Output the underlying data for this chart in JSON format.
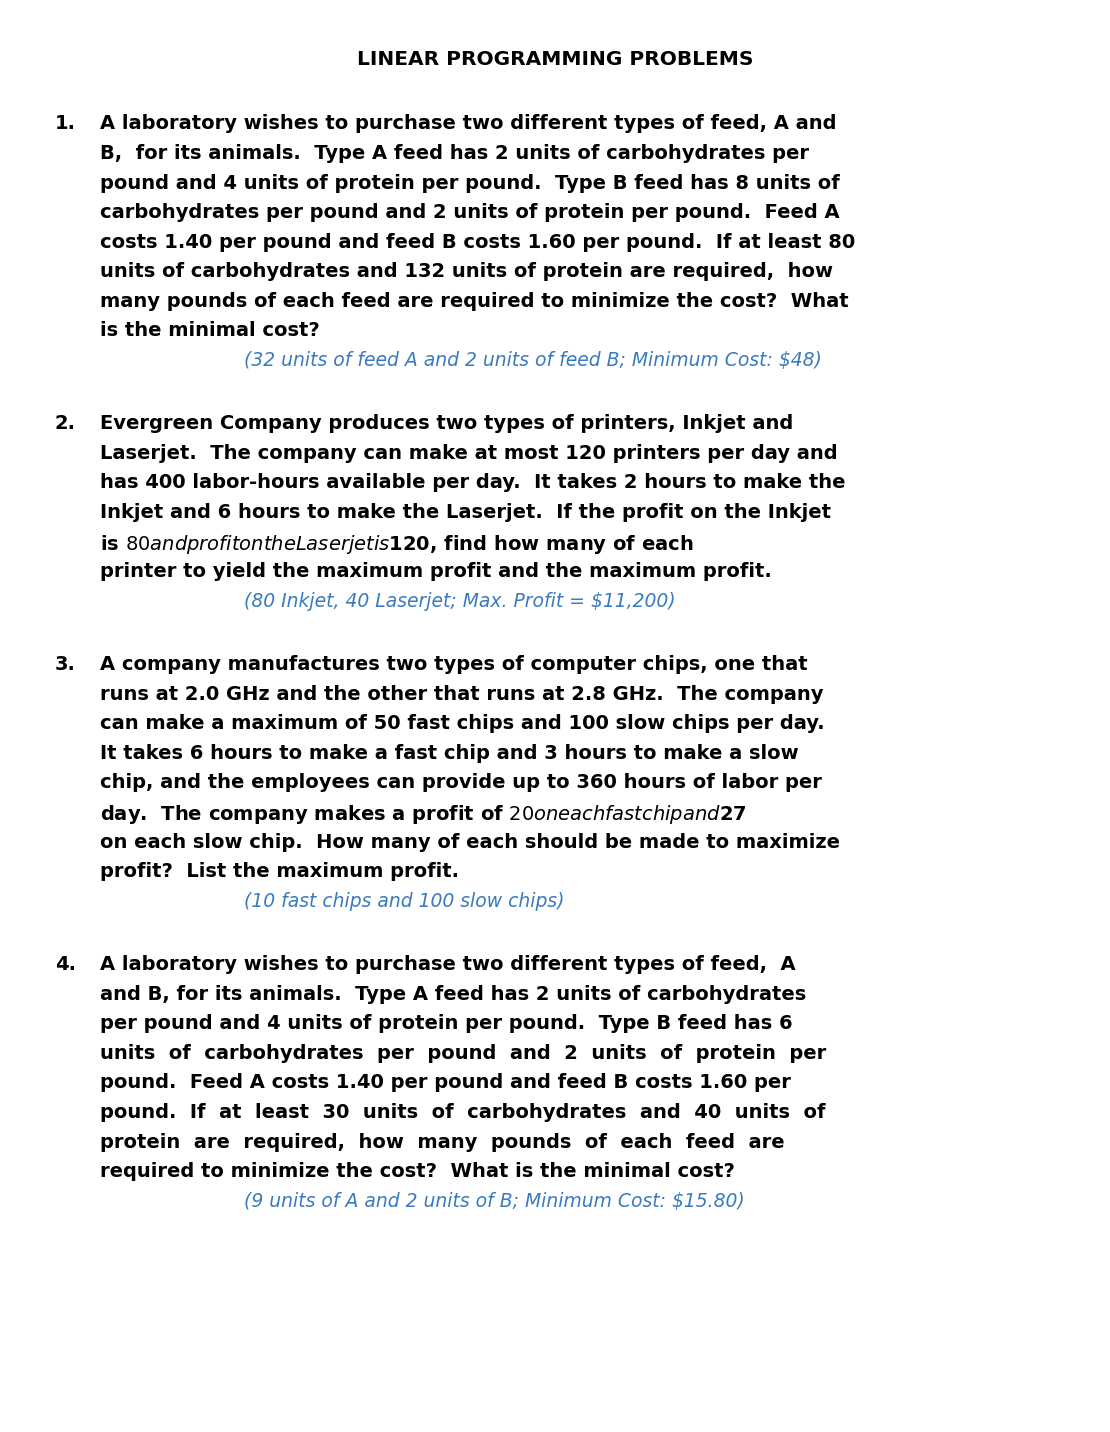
{
  "title": "LINEAR PROGRAMMING PROBLEMS",
  "bg_color": "#ffffff",
  "title_color": "#000000",
  "body_color": "#000000",
  "answer_color": "#3a7abf",
  "title_fontsize": 14.5,
  "body_fontsize": 14.0,
  "answer_fontsize": 13.5,
  "problems": [
    {
      "number": "1.",
      "body_lines": [
        "A laboratory wishes to purchase two different types of feed, A and",
        "B,  for its animals.  Type A feed has 2 units of carbohydrates per",
        "pound and 4 units of protein per pound.  Type B feed has 8 units of",
        "carbohydrates per pound and 2 units of protein per pound.  Feed A",
        "costs 1.40 per pound and feed B costs 1.60 per pound.  If at least 80",
        "units of carbohydrates and 132 units of protein are required,  how",
        "many pounds of each feed are required to minimize the cost?  What",
        "is the minimal cost?"
      ],
      "answer": "(32 units of feed A and 2 units of feed B; Minimum Cost: $48)"
    },
    {
      "number": "2.",
      "body_lines": [
        "Evergreen Company produces two types of printers, Inkjet and",
        "Laserjet.  The company can make at most 120 printers per day and",
        "has 400 labor-hours available per day.  It takes 2 hours to make the",
        "Inkjet and 6 hours to make the Laserjet.  If the profit on the Inkjet",
        "is $80 and profit on the Laserjet is $120, find how many of each",
        "printer to yield the maximum profit and the maximum profit."
      ],
      "answer": "(80 Inkjet, 40 Laserjet; Max. Profit = $11,200)"
    },
    {
      "number": "3.",
      "body_lines": [
        "A company manufactures two types of computer chips, one that",
        "runs at 2.0 GHz and the other that runs at 2.8 GHz.  The company",
        "can make a maximum of 50 fast chips and 100 slow chips per day.",
        "It takes 6 hours to make a fast chip and 3 hours to make a slow",
        "chip, and the employees can provide up to 360 hours of labor per",
        "day.  The company makes a profit of $20 on each fast chip and $27",
        "on each slow chip.  How many of each should be made to maximize",
        "profit?  List the maximum profit."
      ],
      "answer": "(10 fast chips and 100 slow chips)"
    },
    {
      "number": "4.",
      "body_lines": [
        "A laboratory wishes to purchase two different types of feed,  A",
        "and B, for its animals.  Type A feed has 2 units of carbohydrates",
        "per pound and 4 units of protein per pound.  Type B feed has 6",
        "units  of  carbohydrates  per  pound  and  2  units  of  protein  per",
        "pound.  Feed A costs 1.40 per pound and feed B costs 1.60 per",
        "pound.  If  at  least  30  units  of  carbohydrates  and  40  units  of",
        "protein  are  required,  how  many  pounds  of  each  feed  are",
        "required to minimize the cost?  What is the minimal cost?"
      ],
      "answer": "(9 units of A and 2 units of B; Minimum Cost: $15.80)"
    }
  ]
}
